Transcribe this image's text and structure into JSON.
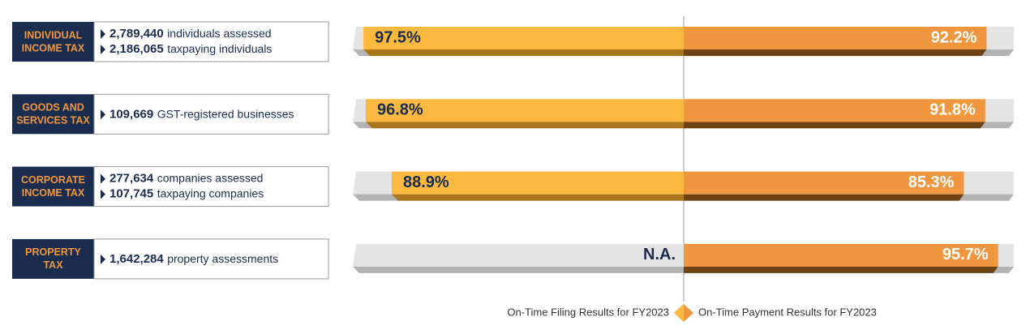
{
  "rows": [
    {
      "tax_lines": [
        "INDIVIDUAL",
        "INCOME TAX"
      ],
      "stats": [
        {
          "number": "2,789,440",
          "text": "individuals assessed"
        },
        {
          "number": "2,186,065",
          "text": "taxpaying individuals"
        }
      ]
    },
    {
      "tax_lines": [
        "GOODS AND",
        "SERVICES TAX"
      ],
      "stats": [
        {
          "number": "109,669",
          "text": "GST-registered businesses"
        }
      ]
    },
    {
      "tax_lines": [
        "CORPORATE",
        "INCOME TAX"
      ],
      "stats": [
        {
          "number": "277,634",
          "text": "companies assessed"
        },
        {
          "number": "107,745",
          "text": "taxpaying companies"
        }
      ]
    },
    {
      "tax_lines": [
        "PROPERTY",
        "TAX"
      ],
      "stats": [
        {
          "number": "1,642,284",
          "text": "property assessments"
        }
      ]
    }
  ],
  "chart_data": {
    "type": "diverging-bar",
    "xlim": [
      0,
      100
    ],
    "series": [
      {
        "name": "On-Time Filing Results for FY2023",
        "color": "#fbb93f",
        "values": [
          97.5,
          96.8,
          88.9,
          null
        ],
        "value_labels": [
          "97.5%",
          "96.8%",
          "88.9%",
          "N.A."
        ]
      },
      {
        "name": "On-Time Payment Results for FY2023",
        "color": "#f0963f",
        "values": [
          92.2,
          91.8,
          85.3,
          95.7
        ],
        "value_labels": [
          "92.2%",
          "91.8%",
          "85.3%",
          "95.7%"
        ]
      }
    ]
  }
}
